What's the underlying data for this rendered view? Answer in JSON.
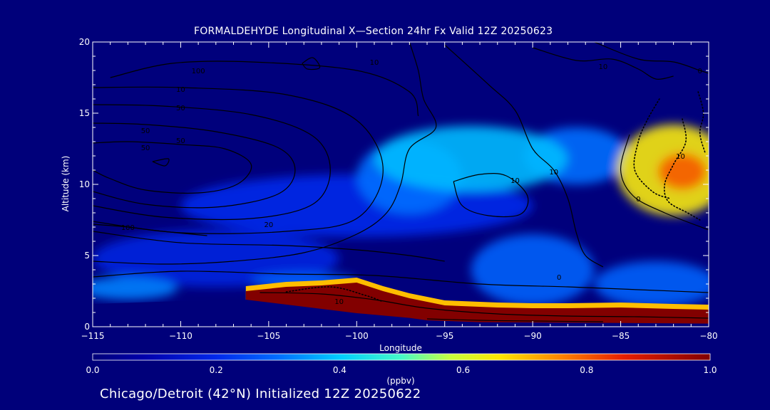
{
  "chart_data": {
    "type": "heatmap",
    "title": "FORMALDEHYDE Longitudinal X—Section 24hr  Fx Valid 12Z 20250623",
    "xlabel": "Longitude",
    "ylabel": "Altitude (km)",
    "xlim": [
      -115,
      -80
    ],
    "ylim": [
      0,
      20
    ],
    "x_ticks": [
      -115,
      -110,
      -105,
      -100,
      -95,
      -90,
      -85,
      -80
    ],
    "x_tick_labels": [
      "−115",
      "−110",
      "−105",
      "−100",
      "−95",
      "−90",
      "−85",
      "−80"
    ],
    "y_ticks": [
      0,
      5,
      10,
      15,
      20
    ],
    "y_tick_labels": [
      "0",
      "5",
      "10",
      "15",
      "20"
    ],
    "colorbar": {
      "min": 0.0,
      "max": 1.0,
      "ticks": [
        0.0,
        0.2,
        0.4,
        0.6,
        0.8,
        1.0
      ],
      "tick_labels": [
        "0.0",
        "0.2",
        "0.4",
        "0.6",
        "0.8",
        "1.0"
      ],
      "unit": "(ppbv)"
    },
    "field_blobs": [
      {
        "lon": -82,
        "alt": 11,
        "rx": 3.2,
        "ry": 3.2,
        "value": 0.65
      },
      {
        "lon": -81.5,
        "alt": 10.9,
        "rx": 1.4,
        "ry": 1.3,
        "value": 0.8
      },
      {
        "lon": -93.5,
        "alt": 11.8,
        "rx": 5.5,
        "ry": 2.3,
        "value": 0.38
      },
      {
        "lon": -87.5,
        "alt": 12,
        "rx": 3.0,
        "ry": 2.0,
        "value": 0.3
      },
      {
        "lon": -97,
        "alt": 10.5,
        "rx": 3.0,
        "ry": 2.6,
        "value": 0.3
      },
      {
        "lon": -100,
        "alt": 8.5,
        "rx": 10,
        "ry": 2.2,
        "value": 0.2
      },
      {
        "lon": -90,
        "alt": 4,
        "rx": 3.5,
        "ry": 2.5,
        "value": 0.28
      },
      {
        "lon": -83,
        "alt": 3,
        "rx": 3.5,
        "ry": 1.6,
        "value": 0.28
      },
      {
        "lon": -108,
        "alt": 4.8,
        "rx": 7,
        "ry": 2.0,
        "value": 0.18
      },
      {
        "lon": -113,
        "alt": 2.7,
        "rx": 2.8,
        "ry": 0.8,
        "value": 0.32
      },
      {
        "lon": -103,
        "alt": 3.2,
        "rx": 3,
        "ry": 0.6,
        "value": 0.28
      }
    ],
    "surface_layer": {
      "lon": [
        -106.3,
        -104,
        -102,
        -100,
        -98.5,
        -97,
        -95,
        -92,
        -90,
        -88,
        -85,
        -82,
        -80
      ],
      "top_km": [
        2.5,
        2.8,
        2.9,
        3.1,
        2.5,
        2.0,
        1.5,
        1.35,
        1.3,
        1.3,
        1.35,
        1.25,
        1.2
      ],
      "value": 1.0
    },
    "terrain": {
      "lon": [
        -115,
        -110,
        -107.5,
        -106.3,
        -100,
        -97,
        -96,
        -93,
        -90,
        -85,
        -82,
        -80
      ],
      "top_km": [
        1.6,
        1.8,
        1.9,
        1.9,
        0.95,
        0.62,
        0.45,
        0.32,
        0.3,
        0.26,
        0.24,
        0.22
      ]
    },
    "contours": [
      {
        "label": "50",
        "label_at": [
          -112,
          12.6
        ],
        "points": [
          [
            -115,
            12.9
          ],
          [
            -113,
            13.0
          ],
          [
            -110,
            12.8
          ],
          [
            -107.5,
            12.5
          ],
          [
            -106,
            11.4
          ],
          [
            -106.8,
            10
          ],
          [
            -109,
            9.4
          ],
          [
            -112,
            9.6
          ],
          [
            -114,
            10.4
          ],
          [
            -115,
            11
          ]
        ]
      },
      {
        "label": "50",
        "label_at": [
          -112,
          13.8
        ],
        "points": [
          [
            -115,
            14.3
          ],
          [
            -112,
            14.2
          ],
          [
            -108,
            13.7
          ],
          [
            -104.5,
            12.6
          ],
          [
            -103.5,
            11
          ],
          [
            -104.5,
            9.3
          ],
          [
            -108,
            8.4
          ],
          [
            -112,
            8.6
          ],
          [
            -115,
            9.5
          ]
        ]
      },
      {
        "label": "50",
        "label_at": [
          -110,
          15.4
        ],
        "points": [
          [
            -115,
            15.6
          ],
          [
            -111,
            15.5
          ],
          [
            -106,
            14.9
          ],
          [
            -102.5,
            13.4
          ],
          [
            -101.5,
            11
          ],
          [
            -102.5,
            8.6
          ],
          [
            -106,
            7.6
          ],
          [
            -111,
            7.7
          ],
          [
            -115,
            8.5
          ]
        ]
      },
      {
        "label": "10",
        "label_at": [
          -110,
          16.7
        ],
        "points": [
          [
            -115,
            16.8
          ],
          [
            -110,
            16.8
          ],
          [
            -104,
            16.3
          ],
          [
            -100,
            14.5
          ],
          [
            -98.5,
            11
          ],
          [
            -100,
            7.6
          ],
          [
            -104,
            6.7
          ],
          [
            -110,
            6.6
          ],
          [
            -115,
            7.4
          ]
        ]
      },
      {
        "label": "100",
        "label_at": [
          -109,
          18.0
        ],
        "points": [
          [
            -114,
            17.5
          ],
          [
            -110.5,
            18.5
          ],
          [
            -106,
            18.6
          ],
          [
            -100,
            18.0
          ],
          [
            -97,
            16.5
          ],
          [
            -96.5,
            14.8
          ]
        ]
      },
      {
        "label": "20",
        "label_at": [
          -105,
          7.2
        ],
        "points": [
          [
            -115,
            6.7
          ],
          [
            -110,
            5.9
          ],
          [
            -104,
            5.7
          ],
          [
            -100,
            5.4
          ],
          [
            -97,
            5.0
          ],
          [
            -95,
            4.6
          ]
        ]
      },
      {
        "label": "100",
        "label_at": [
          -113,
          7.0
        ],
        "points": [
          [
            -115,
            7.2
          ],
          [
            -113,
            7.0
          ],
          [
            -111,
            6.7
          ],
          [
            -108.5,
            6.4
          ]
        ]
      },
      {
        "label": "10",
        "label_at": [
          -99,
          18.6
        ],
        "points": [
          [
            -97,
            20
          ],
          [
            -96.5,
            18
          ],
          [
            -96.2,
            16
          ],
          [
            -95.5,
            14
          ],
          [
            -97,
            12.5
          ],
          [
            -97.5,
            10
          ],
          [
            -98.3,
            8
          ],
          [
            -100,
            6.5
          ],
          [
            -103,
            5.2
          ],
          [
            -107,
            4.6
          ],
          [
            -111,
            4.4
          ],
          [
            -115,
            4.6
          ]
        ]
      },
      {
        "label": "10",
        "label_at": [
          -88.8,
          10.9
        ],
        "points": [
          [
            -95,
            19.8
          ],
          [
            -92.5,
            17
          ],
          [
            -91,
            15.2
          ],
          [
            -90,
            12.5
          ],
          [
            -88.8,
            11
          ],
          [
            -88,
            9
          ],
          [
            -87.5,
            6.5
          ],
          [
            -87,
            5
          ],
          [
            -86,
            4.2
          ]
        ]
      },
      {
        "label": "10",
        "label_at": [
          -86,
          18.3
        ],
        "points": [
          [
            -90,
            19.6
          ],
          [
            -87.5,
            18.7
          ],
          [
            -85.5,
            18.8
          ],
          [
            -84,
            18.1
          ],
          [
            -83,
            17.4
          ],
          [
            -82,
            17.6
          ]
        ]
      },
      {
        "label": "10",
        "label_at": [
          -91,
          10.3
        ],
        "points": [
          [
            -94.5,
            10.2
          ],
          [
            -93,
            10.7
          ],
          [
            -91.5,
            10.6
          ],
          [
            -90.3,
            9.2
          ],
          [
            -90.7,
            7.9
          ],
          [
            -92.5,
            7.8
          ],
          [
            -94,
            8.5
          ],
          [
            -94.5,
            10.2
          ]
        ]
      },
      {
        "label": "50",
        "label_at": [
          -110,
          13.1
        ],
        "points": [
          [
            -111.6,
            11.6
          ],
          [
            -110.7,
            11.8
          ],
          [
            -110.9,
            11.3
          ],
          [
            -111.6,
            11.6
          ]
        ]
      },
      {
        "label": "",
        "label_at": [
          -102.6,
          18.4
        ],
        "points": [
          [
            -103.1,
            18.5
          ],
          [
            -102.5,
            18.9
          ],
          [
            -102.1,
            18.2
          ],
          [
            -102.8,
            18.1
          ],
          [
            -103.1,
            18.5
          ]
        ]
      },
      {
        "label": "0",
        "label_at": [
          -88.5,
          3.5
        ],
        "points": [
          [
            -115,
            3.5
          ],
          [
            -110,
            3.9
          ],
          [
            -104,
            3.7
          ],
          [
            -99,
            3.6
          ],
          [
            -93,
            3.0
          ],
          [
            -88,
            2.8
          ],
          [
            -84,
            2.6
          ],
          [
            -80,
            2.4
          ]
        ]
      },
      {
        "label": "0",
        "label_at": [
          -84,
          9.0
        ],
        "points": [
          [
            -84.5,
            13.5
          ],
          [
            -85,
            11
          ],
          [
            -84.3,
            9.2
          ],
          [
            -82.5,
            8.0
          ],
          [
            -80,
            6.8
          ]
        ]
      },
      {
        "label": "0",
        "label_at": [
          -80.5,
          18.0
        ],
        "points": [
          [
            -86.5,
            20
          ],
          [
            -84,
            18.8
          ],
          [
            -82,
            18.6
          ],
          [
            -80.5,
            18.0
          ],
          [
            -80,
            17.8
          ]
        ]
      },
      {
        "label": "10",
        "label_at": [
          -101,
          1.8
        ],
        "points": [
          [
            -105.5,
            2.4
          ],
          [
            -102,
            2.3
          ],
          [
            -99,
            1.9
          ],
          [
            -96,
            1.3
          ],
          [
            -92,
            0.9
          ],
          [
            -88,
            0.75
          ],
          [
            -84,
            0.7
          ],
          [
            -80,
            0.6
          ]
        ]
      },
      {
        "label": "",
        "label_at": [
          -92,
          0.5
        ],
        "points": [
          [
            -96,
            0.55
          ],
          [
            -93,
            0.45
          ],
          [
            -90,
            0.4
          ],
          [
            -86,
            0.35
          ]
        ]
      }
    ],
    "dotted_contours": [
      {
        "label": "10",
        "label_at": [
          -81.6,
          12.0
        ],
        "points": [
          [
            -81.5,
            14.6
          ],
          [
            -81.3,
            13
          ],
          [
            -82,
            11.4
          ],
          [
            -82.5,
            10.0
          ],
          [
            -82.3,
            8.8
          ],
          [
            -81.2,
            8.0
          ],
          [
            -80.5,
            7.5
          ]
        ]
      },
      {
        "label": "",
        "label_at": [
          -80.5,
          15
        ],
        "points": [
          [
            -80.6,
            16.5
          ],
          [
            -80.3,
            15
          ],
          [
            -80.5,
            13.6
          ],
          [
            -80.2,
            12.2
          ]
        ]
      },
      {
        "label": "",
        "label_at": [
          -83.5,
          14
        ],
        "points": [
          [
            -82.8,
            16.0
          ],
          [
            -83.5,
            14.5
          ],
          [
            -84,
            13
          ],
          [
            -84.2,
            11
          ],
          [
            -83.2,
            9.5
          ],
          [
            -82.2,
            9.0
          ]
        ]
      },
      {
        "label": "",
        "label_at": [
          -100,
          2.8
        ],
        "points": [
          [
            -104,
            2.45
          ],
          [
            -101.5,
            2.8
          ],
          [
            -99.5,
            2.2
          ],
          [
            -98.6,
            1.8
          ]
        ]
      }
    ]
  },
  "footer": "Chicago/Detroit (42°N) Initialized 12Z 20250622"
}
